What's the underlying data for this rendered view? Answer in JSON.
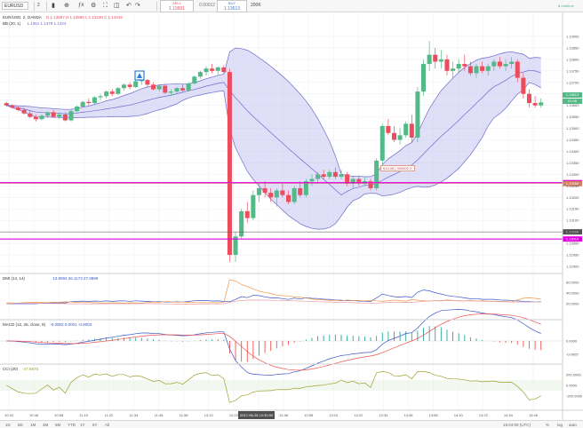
{
  "toolbar": {
    "symbol": "EURUSD",
    "interval": "2",
    "sell_label": "SELL",
    "sell_price": "1.13601",
    "spread": "0.00012",
    "buy_label": "BUY",
    "buy_price": "1.13613",
    "quantity": "200K",
    "status": "realtime"
  },
  "chart_data": {
    "type": "candlestick",
    "title": "EUR/USD, 2, OANDA",
    "ohlc_readout": "O 1.13587 H 1.13596 L 1.13230 C 1.13245",
    "bb_legend": "BB (20, 1)",
    "bb_values": "1.1351 1.1379 1.1323",
    "ylim": [
      1.129,
      1.1395
    ],
    "y_ticks": [
      1.139,
      1.1385,
      1.138,
      1.1375,
      1.137,
      1.1365,
      1.136,
      1.1355,
      1.135,
      1.1345,
      1.134,
      1.1335,
      1.133,
      1.1325,
      1.132,
      1.1315,
      1.131,
      1.1305,
      1.13,
      1.1295,
      1.129
    ],
    "y_tick_labels": [
      "1.13900",
      "1.13850",
      "1.13800",
      "1.13750",
      "1.13700",
      "1.13650",
      "1.13600",
      "1.13550",
      "1.13500",
      "1.13450",
      "1.13400",
      "1.13350",
      "1.13300",
      "1.13250",
      "1.13200",
      "1.13150",
      "1.13100",
      "1.13050",
      "1.13000",
      "1.12950",
      "1.12900"
    ],
    "x_tick_labels": [
      "10:34",
      "10:46",
      "10:58",
      "11:10",
      "11:22",
      "11:34",
      "11:46",
      "11:58",
      "12:10",
      "12:22",
      "12:34",
      "12:46",
      "12:58",
      "13:10",
      "13:22",
      "13:34",
      "13:46",
      "13:58",
      "14:10",
      "14:22",
      "14:34",
      "14:46"
    ],
    "crosshair_time": "2017-06-26 12:30:00",
    "current_price": "1.13613",
    "current_price_sub": "01:06",
    "hlines": [
      {
        "price": 1.13264,
        "label": "1.13264",
        "color": "#e000e0"
      },
      {
        "price": 1.1326,
        "label": "1.13260",
        "color": "#d08060"
      },
      {
        "price": 1.1305,
        "label": "1.13050",
        "color": "#505050"
      },
      {
        "price": 1.13019,
        "label": "1.13019",
        "color": "#e000e0"
      }
    ],
    "position_label": "614.08",
    "position_qty": "300000",
    "position_close": "X",
    "candles": [
      [
        1.1361,
        1.13615,
        1.13595,
        1.136
      ],
      [
        1.136,
        1.13605,
        1.13585,
        1.1359
      ],
      [
        1.1359,
        1.13595,
        1.13575,
        1.1358
      ],
      [
        1.1358,
        1.1359,
        1.1356,
        1.13565
      ],
      [
        1.13565,
        1.13575,
        1.13545,
        1.1355
      ],
      [
        1.1355,
        1.1356,
        1.1353,
        1.1354
      ],
      [
        1.1354,
        1.1356,
        1.13535,
        1.13555
      ],
      [
        1.13555,
        1.13575,
        1.13545,
        1.1357
      ],
      [
        1.1357,
        1.1358,
        1.13545,
        1.1355
      ],
      [
        1.1355,
        1.1357,
        1.1354,
        1.1356
      ],
      [
        1.1356,
        1.1357,
        1.1353,
        1.13535
      ],
      [
        1.13535,
        1.1358,
        1.1353,
        1.13575
      ],
      [
        1.13575,
        1.136,
        1.1357,
        1.13595
      ],
      [
        1.13595,
        1.1362,
        1.1359,
        1.13615
      ],
      [
        1.13615,
        1.1363,
        1.136,
        1.1361
      ],
      [
        1.1361,
        1.1364,
        1.13605,
        1.13635
      ],
      [
        1.13635,
        1.1365,
        1.1362,
        1.1364
      ],
      [
        1.1364,
        1.13665,
        1.1363,
        1.1366
      ],
      [
        1.1366,
        1.1367,
        1.1364,
        1.1365
      ],
      [
        1.1365,
        1.1368,
        1.13645,
        1.13675
      ],
      [
        1.13675,
        1.13695,
        1.13665,
        1.1369
      ],
      [
        1.1369,
        1.137,
        1.1367,
        1.1368
      ],
      [
        1.1368,
        1.1371,
        1.13675,
        1.13705
      ],
      [
        1.13705,
        1.1372,
        1.1369,
        1.1371
      ],
      [
        1.1371,
        1.13715,
        1.1368,
        1.1369
      ],
      [
        1.1369,
        1.137,
        1.13665,
        1.1367
      ],
      [
        1.1367,
        1.1369,
        1.1366,
        1.13685
      ],
      [
        1.13685,
        1.1369,
        1.1365,
        1.13655
      ],
      [
        1.13655,
        1.1367,
        1.1364,
        1.1366
      ],
      [
        1.1366,
        1.1368,
        1.1365,
        1.13675
      ],
      [
        1.13675,
        1.1369,
        1.1366,
        1.13665
      ],
      [
        1.13665,
        1.137,
        1.1366,
        1.13695
      ],
      [
        1.13695,
        1.1373,
        1.1369,
        1.13725
      ],
      [
        1.13725,
        1.1375,
        1.13715,
        1.13745
      ],
      [
        1.13745,
        1.1377,
        1.1373,
        1.1376
      ],
      [
        1.1376,
        1.1378,
        1.1374,
        1.1375
      ],
      [
        1.1375,
        1.1377,
        1.13735,
        1.13765
      ],
      [
        1.13765,
        1.13775,
        1.1374,
        1.13745
      ],
      [
        1.13745,
        1.1376,
        1.1292,
        1.1295
      ],
      [
        1.1295,
        1.1305,
        1.1292,
        1.1303
      ],
      [
        1.1303,
        1.1315,
        1.1302,
        1.1314
      ],
      [
        1.1314,
        1.1318,
        1.1309,
        1.1311
      ],
      [
        1.1311,
        1.1323,
        1.131,
        1.1321
      ],
      [
        1.1321,
        1.1326,
        1.1318,
        1.1324
      ],
      [
        1.1324,
        1.1327,
        1.132,
        1.1322
      ],
      [
        1.1322,
        1.1324,
        1.1318,
        1.132
      ],
      [
        1.132,
        1.1324,
        1.1316,
        1.1323
      ],
      [
        1.1323,
        1.1326,
        1.132,
        1.1321
      ],
      [
        1.1321,
        1.1323,
        1.1317,
        1.1318
      ],
      [
        1.1318,
        1.1325,
        1.1317,
        1.1324
      ],
      [
        1.1324,
        1.1327,
        1.132,
        1.1321
      ],
      [
        1.1321,
        1.1328,
        1.132,
        1.1327
      ],
      [
        1.1327,
        1.133,
        1.1325,
        1.1328
      ],
      [
        1.1328,
        1.1331,
        1.1326,
        1.133
      ],
      [
        1.133,
        1.1332,
        1.1328,
        1.1329
      ],
      [
        1.1329,
        1.1332,
        1.1328,
        1.1331
      ],
      [
        1.1331,
        1.1333,
        1.1328,
        1.1329
      ],
      [
        1.1329,
        1.1332,
        1.1328,
        1.133
      ],
      [
        1.133,
        1.1331,
        1.1325,
        1.1326
      ],
      [
        1.1326,
        1.1329,
        1.1324,
        1.1328
      ],
      [
        1.1328,
        1.1329,
        1.1325,
        1.1326
      ],
      [
        1.1326,
        1.1329,
        1.1325,
        1.1327
      ],
      [
        1.1327,
        1.1328,
        1.1323,
        1.1324
      ],
      [
        1.1324,
        1.1337,
        1.1323,
        1.1336
      ],
      [
        1.1336,
        1.1352,
        1.1334,
        1.1351
      ],
      [
        1.1351,
        1.1354,
        1.1347,
        1.1348
      ],
      [
        1.1348,
        1.1351,
        1.1344,
        1.1345
      ],
      [
        1.1345,
        1.135,
        1.1343,
        1.1347
      ],
      [
        1.1347,
        1.1353,
        1.1346,
        1.1352
      ],
      [
        1.1352,
        1.1356,
        1.1344,
        1.1346
      ],
      [
        1.1346,
        1.1368,
        1.1344,
        1.1366
      ],
      [
        1.1366,
        1.138,
        1.1364,
        1.1378
      ],
      [
        1.1378,
        1.1388,
        1.1375,
        1.1382
      ],
      [
        1.1382,
        1.1385,
        1.1376,
        1.1379
      ],
      [
        1.1379,
        1.1384,
        1.1376,
        1.138
      ],
      [
        1.138,
        1.1382,
        1.1373,
        1.1375
      ],
      [
        1.1375,
        1.1379,
        1.1372,
        1.1376
      ],
      [
        1.1376,
        1.138,
        1.1374,
        1.1378
      ],
      [
        1.1378,
        1.1382,
        1.1375,
        1.1377
      ],
      [
        1.1377,
        1.1379,
        1.1373,
        1.1374
      ],
      [
        1.1374,
        1.1378,
        1.1372,
        1.1377
      ],
      [
        1.1377,
        1.1379,
        1.1374,
        1.1375
      ],
      [
        1.1375,
        1.1378,
        1.1373,
        1.1377
      ],
      [
        1.1377,
        1.138,
        1.1375,
        1.1379
      ],
      [
        1.1379,
        1.1381,
        1.1376,
        1.1377
      ],
      [
        1.1377,
        1.138,
        1.1375,
        1.1378
      ],
      [
        1.1378,
        1.1381,
        1.1376,
        1.1379
      ],
      [
        1.1379,
        1.138,
        1.137,
        1.1372
      ],
      [
        1.1372,
        1.1374,
        1.1363,
        1.1365
      ],
      [
        1.1365,
        1.1367,
        1.1359,
        1.1361
      ],
      [
        1.1361,
        1.1364,
        1.1359,
        1.136
      ],
      [
        1.136,
        1.1363,
        1.1359,
        1.13613
      ]
    ],
    "dmi": {
      "label": "DMI (14, 14)",
      "values_text": "13.8094  26.1173  27.0899",
      "axis_labels": [
        "60.0000",
        "40.0000",
        "20.0000"
      ],
      "ylim": [
        0,
        70
      ]
    },
    "macd": {
      "label": "MACD (12, 26, close, 9)",
      "values_text": "-0.0002  0.0001  -0.0003",
      "axis_labels": [
        "0.0000",
        "-0.0005"
      ]
    },
    "cci": {
      "label": "CCI (20)",
      "values_text": "-47.6675",
      "axis_labels": [
        "200.0000",
        "0.0000",
        "-200.0000"
      ]
    }
  },
  "bottom": {
    "ranges": [
      "1D",
      "5D",
      "1M",
      "3M",
      "6M",
      "YTD",
      "1Y",
      "5Y",
      "All"
    ],
    "time_text": "15:04:00 (UTC)",
    "scale_opts": [
      "%",
      "log",
      "auto"
    ]
  },
  "colors": {
    "up": "#53b987",
    "down": "#eb4d5c",
    "bb_fill": "#c7c4f2",
    "bb_line": "#6f6acb",
    "hline_magenta": "#e000e0"
  }
}
